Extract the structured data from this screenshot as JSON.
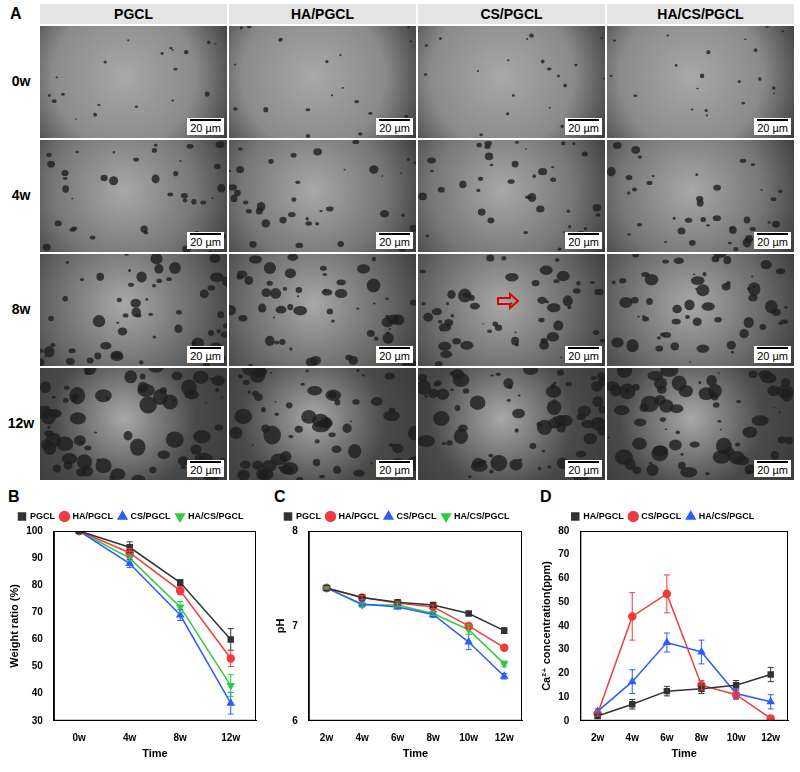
{
  "panel_a": {
    "label": "A",
    "columns": [
      "PGCL",
      "HA/PGCL",
      "CS/PGCL",
      "HA/CS/PGCL"
    ],
    "rows": [
      "0w",
      "4w",
      "8w",
      "12w"
    ],
    "scale_bar": "20 µm"
  },
  "chart_data": [
    {
      "panel_label": "B",
      "type": "line",
      "x_label": "Time",
      "y_label": "Weight ratio (%)",
      "categories": [
        "0w",
        "4w",
        "8w",
        "12w"
      ],
      "ylim": [
        30,
        100
      ],
      "yticks": [
        30,
        40,
        50,
        60,
        70,
        80,
        90,
        100
      ],
      "grid": false,
      "legend": "top",
      "series": [
        {
          "name": "PGCL",
          "color": "#333333",
          "marker": "square",
          "values": [
            100,
            94,
            81,
            60
          ],
          "errors": [
            0,
            2,
            1,
            4
          ]
        },
        {
          "name": "HA/PGCL",
          "color": "#f03c3c",
          "marker": "circle",
          "values": [
            100,
            92,
            78,
            53
          ],
          "errors": [
            0,
            1.5,
            1.5,
            3
          ]
        },
        {
          "name": "CS/PGCL",
          "color": "#2b5cff",
          "marker": "triangle",
          "values": [
            100,
            88,
            69,
            36.5
          ],
          "errors": [
            0,
            1.5,
            2,
            4
          ]
        },
        {
          "name": "HA/CS/PGCL",
          "color": "#2ecc40",
          "marker": "triangle-down",
          "values": [
            100,
            90,
            72,
            43
          ],
          "errors": [
            0,
            1,
            2,
            4
          ]
        }
      ]
    },
    {
      "panel_label": "C",
      "type": "line",
      "x_label": "Time",
      "y_label": "pH",
      "categories": [
        "2w",
        "4w",
        "6w",
        "8w",
        "10w",
        "12w"
      ],
      "ylim": [
        6,
        8
      ],
      "yticks": [
        6,
        7,
        8
      ],
      "grid": false,
      "legend": "top",
      "series": [
        {
          "name": "PGCL",
          "color": "#333333",
          "marker": "square",
          "values": [
            7.4,
            7.3,
            7.25,
            7.22,
            7.13,
            6.95
          ],
          "errors": [
            0.01,
            0.02,
            0.02,
            0.02,
            0.02,
            0.03
          ]
        },
        {
          "name": "HA/PGCL",
          "color": "#f03c3c",
          "marker": "circle",
          "values": [
            7.4,
            7.3,
            7.24,
            7.2,
            7.0,
            6.77
          ],
          "errors": [
            0.01,
            0.02,
            0.02,
            0.02,
            0.03,
            0.02
          ]
        },
        {
          "name": "CS/PGCL",
          "color": "#2b5cff",
          "marker": "triangle",
          "values": [
            7.4,
            7.23,
            7.2,
            7.12,
            6.83,
            6.47
          ],
          "errors": [
            0.01,
            0.03,
            0.02,
            0.03,
            0.08,
            0.03
          ]
        },
        {
          "name": "HA/CS/PGCL",
          "color": "#2ecc40",
          "marker": "triangle-down",
          "values": [
            7.4,
            7.22,
            7.22,
            7.13,
            6.96,
            6.6
          ],
          "errors": [
            0.01,
            0.02,
            0.02,
            0.02,
            0.05,
            0.03
          ]
        }
      ]
    },
    {
      "panel_label": "D",
      "type": "line",
      "x_label": "Time",
      "y_label": "Ca²⁺ concentration(ppm)",
      "categories": [
        "2w",
        "4w",
        "6w",
        "8w",
        "10w",
        "12w"
      ],
      "ylim": [
        0,
        80
      ],
      "yticks": [
        0,
        10,
        20,
        30,
        40,
        50,
        60,
        70,
        80
      ],
      "grid": false,
      "legend": "top",
      "series": [
        {
          "name": "HA/PGCL",
          "color": "#333333",
          "marker": "square",
          "values": [
            2,
            7,
            12.5,
            13.5,
            15,
            19.5
          ],
          "errors": [
            1,
            2,
            2,
            2,
            2,
            3
          ]
        },
        {
          "name": "CS/PGCL",
          "color": "#f03c3c",
          "marker": "circle",
          "values": [
            3,
            44,
            53.5,
            15,
            11,
            1
          ],
          "errors": [
            1,
            10,
            8,
            2,
            2,
            1
          ]
        },
        {
          "name": "HA/CS/PGCL",
          "color": "#2b5cff",
          "marker": "triangle",
          "values": [
            4,
            16.5,
            33,
            29,
            11.5,
            8
          ],
          "errors": [
            1,
            5,
            4,
            5,
            2,
            3
          ]
        }
      ]
    }
  ]
}
